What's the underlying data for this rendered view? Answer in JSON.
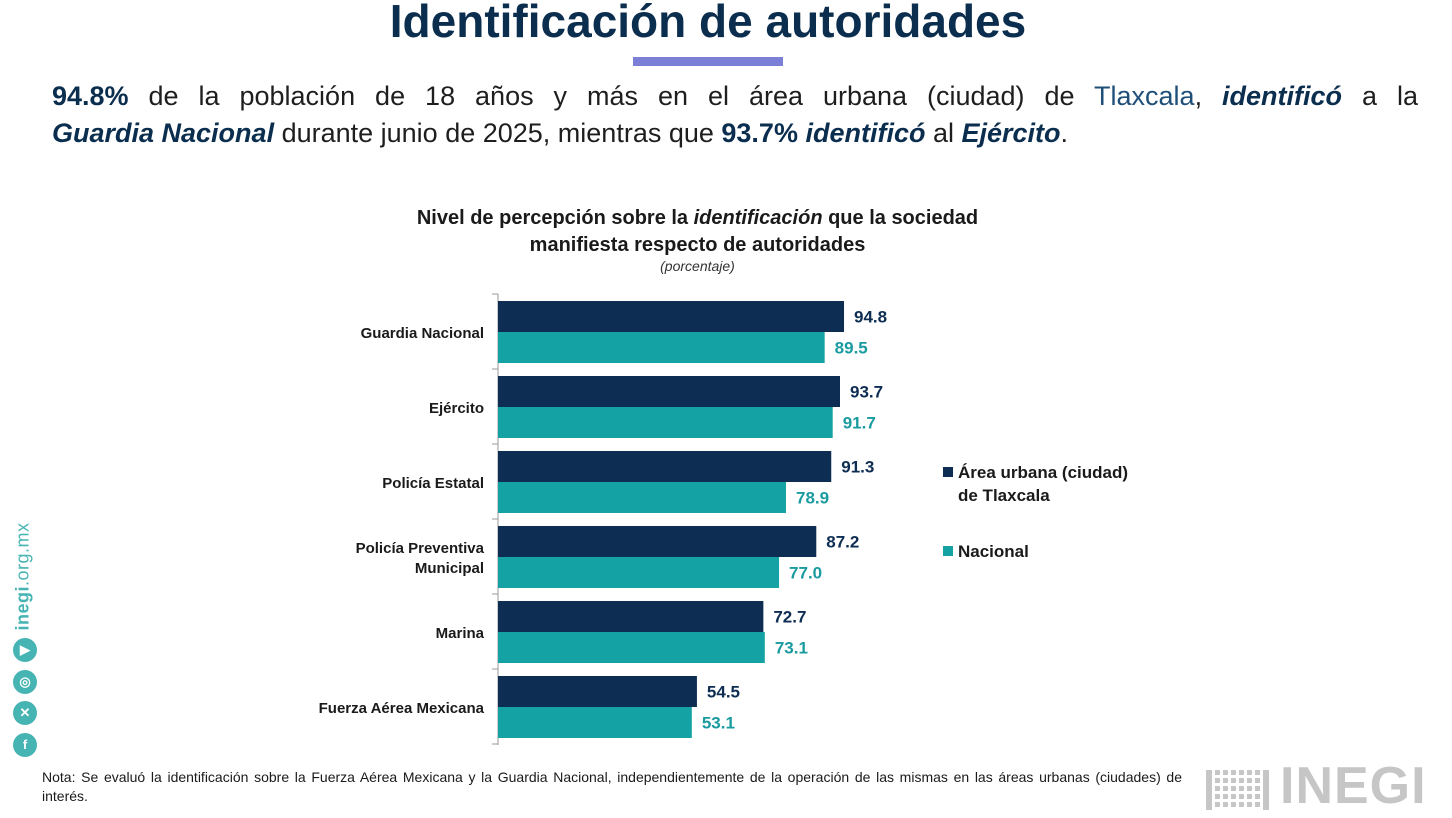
{
  "header": {
    "title": "Identificación de autoridades",
    "lead": {
      "pct1": "94.8%",
      "t1": " de la población de 18 años y más en el área urbana (ciudad) de ",
      "city": "Tlaxcala",
      "t2": ", ",
      "verb1": "identificó",
      "t3": " a la",
      "entity1": "Guardia Nacional",
      "t4": " durante junio de 2025, mientras que ",
      "pct2": "93.7%",
      "t5": " ",
      "verb2": "identificó",
      "t6": " al ",
      "entity2": "Ejército",
      "t7": "."
    }
  },
  "chart_data": {
    "type": "bar",
    "orientation": "horizontal",
    "title_part1": "Nivel de percepción sobre la ",
    "title_italic": "identificación",
    "title_part2": " que la sociedad",
    "title_line2": "manifiesta respecto de autoridades",
    "subtitle": "(porcentaje)",
    "categories": [
      "Guardia Nacional",
      "Ejército",
      "Policía Estatal",
      "Policía Preventiva Municipal",
      "Marina",
      "Fuerza Aérea Mexicana"
    ],
    "category_lines": [
      [
        "Guardia Nacional"
      ],
      [
        "Ejército"
      ],
      [
        "Policía Estatal"
      ],
      [
        "Policía Preventiva",
        "Municipal"
      ],
      [
        "Marina"
      ],
      [
        "Fuerza Aérea Mexicana"
      ]
    ],
    "series": [
      {
        "name": "Área urbana (ciudad) de Tlaxcala",
        "legend_lines": [
          "Área urbana (ciudad)",
          "de Tlaxcala"
        ],
        "color": "#0d2d52",
        "label_color": "#0d2d52",
        "values": [
          94.8,
          93.7,
          91.3,
          87.2,
          72.7,
          54.5
        ],
        "labels": [
          "94.8",
          "93.7",
          "91.3",
          "87.2",
          "72.7",
          "54.5"
        ]
      },
      {
        "name": "Nacional",
        "legend_lines": [
          "Nacional"
        ],
        "color": "#15a2a4",
        "label_color": "#1a9ba0",
        "values": [
          89.5,
          91.7,
          78.9,
          77.0,
          73.1,
          53.1
        ],
        "labels": [
          "89.5",
          "91.7",
          "78.9",
          "77.0",
          "73.1",
          "53.1"
        ]
      }
    ],
    "xlim": [
      0,
      100
    ],
    "grid": false,
    "legend_position": "right"
  },
  "footer": {
    "note": "Nota: Se evaluó la identificación sobre la Fuerza Aérea Mexicana y la Guardia Nacional, independientemente de la operación de las mismas en las áreas urbanas (ciudades) de interés.",
    "url_bold": "inegi",
    "url_rest": ".org.mx",
    "social_icons": [
      "youtube-icon",
      "instagram-icon",
      "x-icon",
      "facebook-icon"
    ],
    "logo_text": "INEGI"
  }
}
